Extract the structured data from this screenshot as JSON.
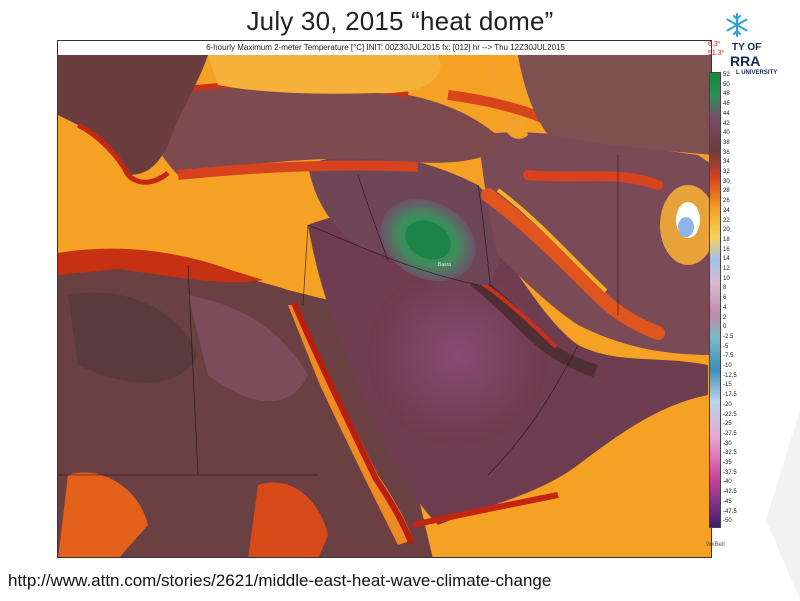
{
  "slide": {
    "title": "July 30, 2015  “heat dome”",
    "source_url": "http://www.attn.com/stories/2621/middle-east-heat-wave-climate-change"
  },
  "map": {
    "header": "6-hourly Maximum 2-meter Temperature [°C] INIT: 00Z30JUL2015 fx: [012] hr --> Thu 12Z30JUL2015",
    "min_value": "6.3°",
    "max_value": "51.3°",
    "city_label": "Basra",
    "legend_unit": "WxBell",
    "legend_ticks": [
      "52",
      "50",
      "48",
      "46",
      "44",
      "42",
      "40",
      "38",
      "36",
      "34",
      "32",
      "30",
      "28",
      "26",
      "24",
      "22",
      "20",
      "18",
      "16",
      "14",
      "12",
      "10",
      "8",
      "6",
      "4",
      "2",
      "0",
      "-2.5",
      "-5",
      "-7.5",
      "-10",
      "-12.5",
      "-15",
      "-17.5",
      "-20",
      "-22.5",
      "-25",
      "-27.5",
      "-30",
      "-32.5",
      "-35",
      "-37.5",
      "-40",
      "-42.5",
      "-45",
      "-47.5",
      "-50"
    ],
    "colors": {
      "sea": "#f7a423",
      "sea_deep": "#f0922a",
      "hot_land": "#6b3a3c",
      "very_hot": "#7a4060",
      "extreme": "#2f8a57",
      "mountain": "#d8421e",
      "coast": "#b81f10"
    }
  },
  "logo": {
    "line1": "TY OF",
    "line2": "RRA",
    "line3": "L UNIVERSITY",
    "icon": "snowflake-icon"
  }
}
